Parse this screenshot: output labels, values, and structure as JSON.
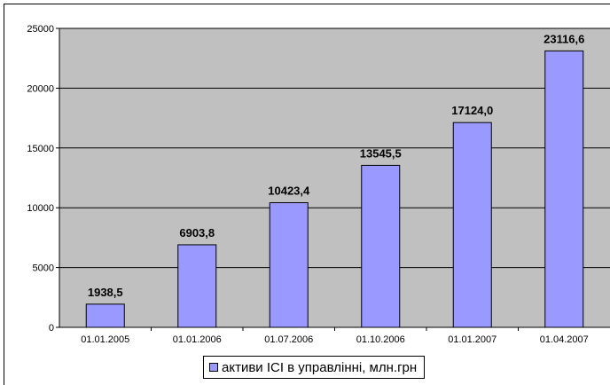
{
  "chart_data": {
    "type": "bar",
    "categories": [
      "01.01.2005",
      "01.01.2006",
      "01.07.2006",
      "01.10.2006",
      "01.01.2007",
      "01.04.2007"
    ],
    "value_labels": [
      "1938,5",
      "6903,8",
      "10423,4",
      "13545,5",
      "17124,0",
      "23116,6"
    ],
    "series": [
      {
        "name": "активи ІСІ в управлінні, млн.грн",
        "values": [
          1938.5,
          6903.8,
          10423.4,
          13545.5,
          17124.0,
          23116.6
        ]
      }
    ],
    "title": "",
    "xlabel": "",
    "ylabel": "",
    "ylim": [
      0,
      25000
    ],
    "yticks": [
      "0",
      "5000",
      "10000",
      "15000",
      "20000",
      "25000"
    ],
    "grid": true,
    "legend_position": "bottom",
    "colors": {
      "bar": "#9999ff",
      "plot_area": "#c0c0c0",
      "grid": "#000000"
    }
  }
}
